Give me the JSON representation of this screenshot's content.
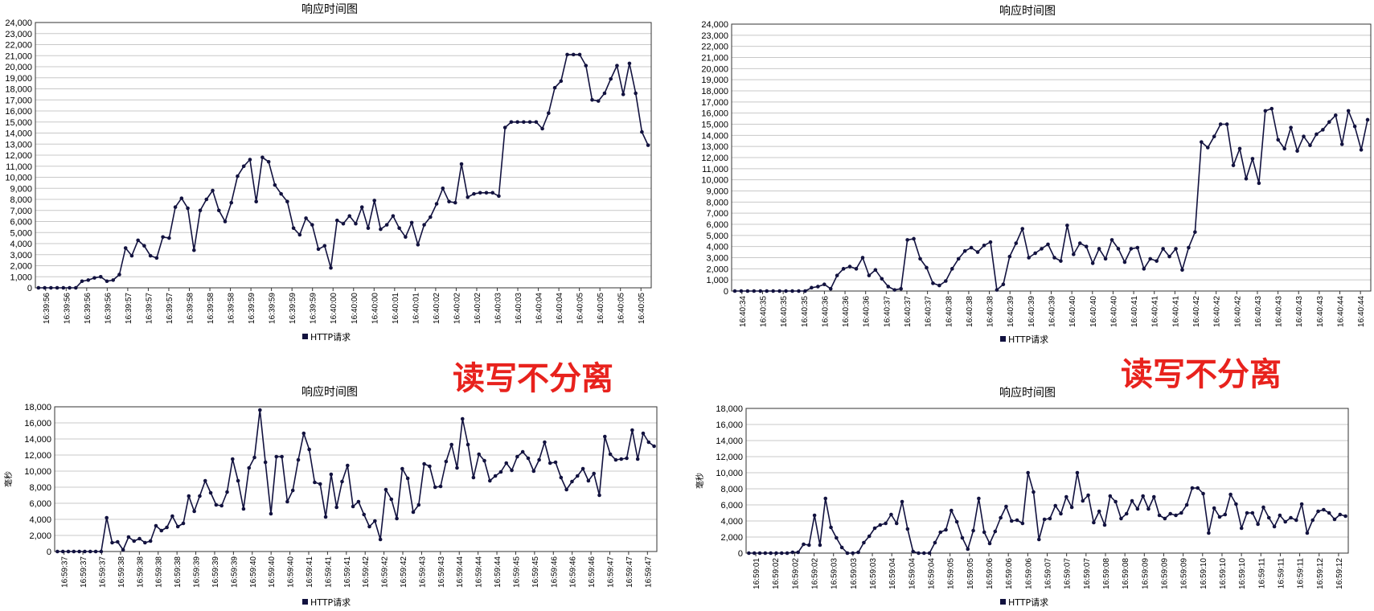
{
  "annotations": [
    "读写不分离",
    "读写不分离"
  ],
  "colors": {
    "series": "#12123f",
    "grid": "#c8c8c8",
    "axis": "#333333",
    "annotation": "#e8221d"
  },
  "chart_data": [
    {
      "type": "line",
      "title": "响应时间图",
      "ylabel": "",
      "legend": "HTTP请求",
      "ylim": [
        0,
        24000
      ],
      "ytick_step": 1000,
      "xtick_labels": [
        "16:39:56",
        "16:39:56",
        "16:39:56",
        "16:39:56",
        "16:39:57",
        "16:39:57",
        "16:39:57",
        "16:39:58",
        "16:39:58",
        "16:39:58",
        "16:39:59",
        "16:39:59",
        "16:39:59",
        "16:39:59",
        "16:40:00",
        "16:40:00",
        "16:40:00",
        "16:40:01",
        "16:40:01",
        "16:40:02",
        "16:40:02",
        "16:40:02",
        "16:40:03",
        "16:40:03",
        "16:40:04",
        "16:40:04",
        "16:40:05",
        "16:40:05",
        "16:40:05",
        "16:40:05"
      ],
      "series": [
        {
          "name": "HTTP请求",
          "values": [
            0,
            0,
            0,
            0,
            0,
            0,
            0,
            600,
            700,
            900,
            1000,
            600,
            700,
            1200,
            3600,
            2900,
            4300,
            3800,
            2900,
            2700,
            4600,
            4500,
            7300,
            8100,
            7200,
            3400,
            7000,
            8000,
            8800,
            7000,
            6000,
            7700,
            10100,
            11000,
            11600,
            7800,
            11800,
            11400,
            9300,
            8500,
            7800,
            5400,
            4800,
            6300,
            5700,
            3500,
            3800,
            1800,
            6100,
            5800,
            6500,
            5800,
            7300,
            5400,
            7900,
            5300,
            5700,
            6500,
            5400,
            4600,
            5900,
            3900,
            5700,
            6400,
            7600,
            9000,
            7800,
            7700,
            11200,
            8200,
            8500,
            8600,
            8600,
            8600,
            8300,
            14500,
            15000,
            15000,
            15000,
            15000,
            15000,
            14400,
            15800,
            18100,
            18700,
            21100,
            21100,
            21100,
            20100,
            17000,
            16900,
            17600,
            18900,
            20100,
            17500,
            20300,
            17600,
            14100,
            12900
          ]
        }
      ]
    },
    {
      "type": "line",
      "title": "响应时间图",
      "ylabel": "",
      "legend": "HTTP请求",
      "ylim": [
        0,
        24000
      ],
      "ytick_step": 1000,
      "xtick_labels": [
        "16:40:34",
        "16:40:35",
        "16:40:35",
        "16:40:35",
        "16:40:36",
        "16:40:36",
        "16:40:36",
        "16:40:37",
        "16:40:37",
        "16:40:37",
        "16:40:38",
        "16:40:38",
        "16:40:38",
        "16:40:39",
        "16:40:39",
        "16:40:39",
        "16:40:40",
        "16:40:40",
        "16:40:40",
        "16:40:41",
        "16:40:41",
        "16:40:41",
        "16:40:42",
        "16:40:42",
        "16:40:42",
        "16:40:43",
        "16:40:43",
        "16:40:43",
        "16:40:43",
        "16:40:44",
        "16:40:44"
      ],
      "series": [
        {
          "name": "HTTP请求",
          "values": [
            0,
            0,
            0,
            0,
            0,
            0,
            0,
            0,
            0,
            0,
            0,
            0,
            300,
            400,
            600,
            200,
            1400,
            2000,
            2200,
            2000,
            3000,
            1400,
            1900,
            1100,
            400,
            100,
            200,
            4600,
            4700,
            2900,
            2100,
            700,
            500,
            900,
            2000,
            2900,
            3600,
            3900,
            3500,
            4100,
            4400,
            100,
            600,
            3100,
            4300,
            5600,
            3000,
            3400,
            3800,
            4200,
            3000,
            2700,
            5900,
            3300,
            4300,
            4000,
            2500,
            3800,
            2900,
            4600,
            3800,
            2600,
            3800,
            3900,
            2000,
            2900,
            2700,
            3800,
            3100,
            3800,
            1900,
            3900,
            5300,
            13400,
            12900,
            13900,
            15000,
            15000,
            11300,
            12800,
            10100,
            11900,
            9700,
            16200,
            16400,
            13600,
            12800,
            14700,
            12600,
            13900,
            13100,
            14100,
            14500,
            15200,
            15800,
            13200,
            16200,
            14800,
            12700,
            15400
          ]
        }
      ]
    },
    {
      "type": "line",
      "title": "响应时间图",
      "ylabel": "毫秒",
      "legend": "HTTP请求",
      "ylim": [
        0,
        18000
      ],
      "ytick_step": 2000,
      "xtick_labels": [
        "16:59:37",
        "16:59:37",
        "16:59:37",
        "16:59:38",
        "16:59:38",
        "16:59:38",
        "16:59:38",
        "16:59:39",
        "16:59:39",
        "16:59:39",
        "16:59:40",
        "16:59:40",
        "16:59:40",
        "16:59:41",
        "16:59:41",
        "16:59:41",
        "16:59:42",
        "16:59:42",
        "16:59:42",
        "16:59:43",
        "16:59:43",
        "16:59:44",
        "16:59:44",
        "16:59:44",
        "16:59:45",
        "16:59:45",
        "16:59:46",
        "16:59:46",
        "16:59:46",
        "16:59:47",
        "16:59:47",
        "16:59:47"
      ],
      "series": [
        {
          "name": "HTTP请求",
          "values": [
            0,
            0,
            0,
            0,
            0,
            0,
            0,
            0,
            0,
            4200,
            1100,
            1200,
            200,
            1800,
            1300,
            1600,
            1100,
            1300,
            3200,
            2600,
            3000,
            4400,
            3100,
            3500,
            6900,
            5000,
            6900,
            8800,
            7300,
            5800,
            5700,
            7400,
            11500,
            8800,
            5300,
            10400,
            11700,
            17600,
            11100,
            4700,
            11800,
            11800,
            6200,
            7600,
            11400,
            14700,
            12700,
            8600,
            8400,
            4300,
            9600,
            5500,
            8700,
            10700,
            5600,
            6200,
            4600,
            3100,
            3800,
            1500,
            7700,
            6500,
            4100,
            10300,
            9100,
            4900,
            5800,
            10900,
            10600,
            8000,
            8100,
            11200,
            13300,
            10400,
            16500,
            13300,
            9200,
            12100,
            11300,
            8800,
            9400,
            9900,
            11000,
            10100,
            11800,
            12400,
            11600,
            10000,
            11400,
            13600,
            11000,
            11100,
            9200,
            7700,
            8700,
            9400,
            10300,
            8800,
            9700,
            7000,
            14300,
            12100,
            11400,
            11500,
            11600,
            15100,
            11500,
            14700,
            13600,
            13100
          ]
        }
      ]
    },
    {
      "type": "line",
      "title": "响应时间图",
      "ylabel": "毫秒",
      "legend": "HTTP请求",
      "ylim": [
        0,
        18000
      ],
      "ytick_step": 2000,
      "xtick_labels": [
        "16:59:01",
        "16:59:02",
        "16:59:02",
        "16:59:02",
        "16:59:03",
        "16:59:03",
        "16:59:03",
        "16:59:04",
        "16:59:04",
        "16:59:04",
        "16:59:05",
        "16:59:05",
        "16:59:06",
        "16:59:06",
        "16:59:06",
        "16:59:07",
        "16:59:07",
        "16:59:07",
        "16:59:08",
        "16:59:08",
        "16:59:09",
        "16:59:09",
        "16:59:09",
        "16:59:10",
        "16:59:10",
        "16:59:10",
        "16:59:11",
        "16:59:11",
        "16:59:11",
        "16:59:12",
        "16:59:12"
      ],
      "series": [
        {
          "name": "HTTP请求",
          "values": [
            0,
            0,
            0,
            0,
            0,
            0,
            0,
            0,
            100,
            100,
            1100,
            1000,
            4700,
            1000,
            6800,
            3200,
            1900,
            700,
            0,
            0,
            100,
            1300,
            2100,
            3100,
            3500,
            3700,
            4800,
            3700,
            6400,
            3000,
            200,
            0,
            0,
            0,
            1300,
            2600,
            2900,
            5300,
            3900,
            1900,
            500,
            2800,
            6800,
            2600,
            1200,
            2700,
            4400,
            5800,
            4000,
            4100,
            3700,
            10000,
            7600,
            1700,
            4200,
            4300,
            5900,
            4900,
            7000,
            5700,
            10000,
            6500,
            7200,
            3800,
            5200,
            3500,
            7100,
            6400,
            4300,
            4900,
            6500,
            5500,
            7100,
            5500,
            7000,
            4700,
            4300,
            4900,
            4700,
            5000,
            6000,
            8100,
            8100,
            7400,
            2500,
            5600,
            4500,
            4800,
            7300,
            6100,
            3100,
            5000,
            5000,
            3600,
            5700,
            4400,
            3300,
            4700,
            3900,
            4400,
            4100,
            6100,
            2500,
            4100,
            5200,
            5400,
            5000,
            4200,
            4800,
            4600
          ]
        }
      ]
    }
  ]
}
